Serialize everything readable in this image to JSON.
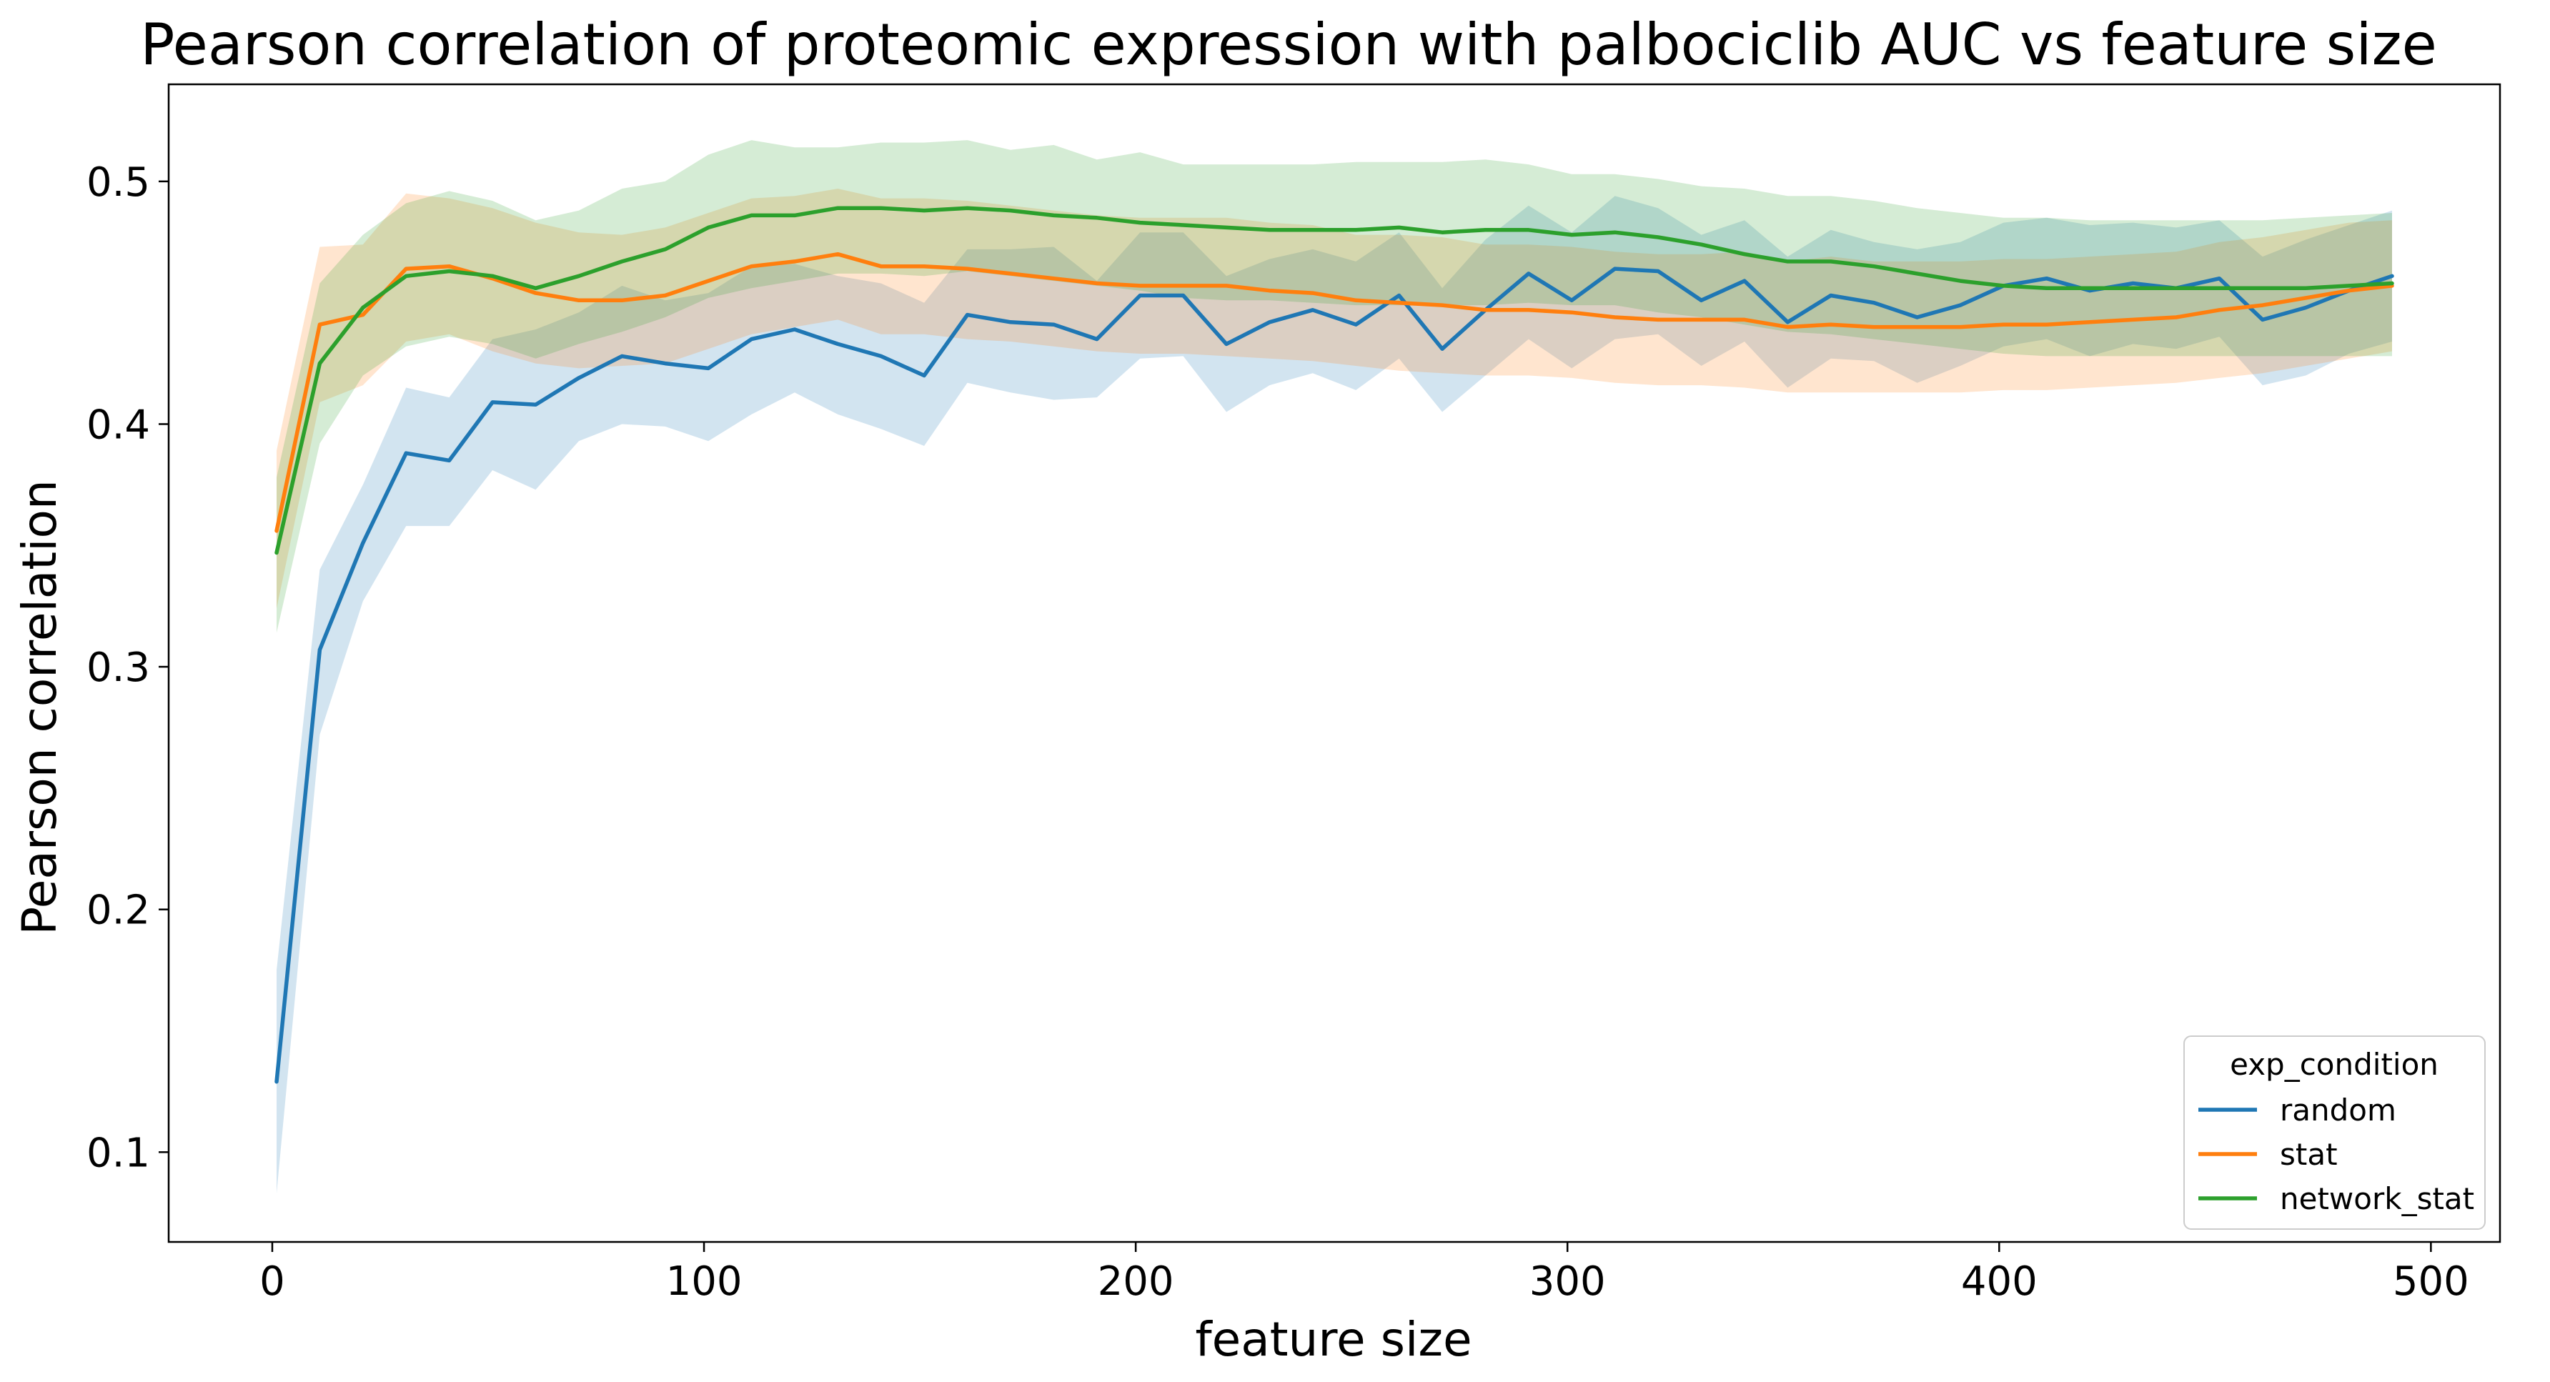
{
  "chart_data": {
    "type": "line",
    "title": "Pearson correlation of proteomic expression with palbociclib AUC vs feature size",
    "xlabel": "feature size",
    "ylabel": "Pearson correlation",
    "xlim": [
      -24,
      516
    ],
    "ylim": [
      0.063,
      0.54
    ],
    "xticks": [
      0,
      100,
      200,
      300,
      400,
      500
    ],
    "xtick_labels": [
      "0",
      "100",
      "200",
      "300",
      "400",
      "500"
    ],
    "yticks": [
      0.1,
      0.2,
      0.3,
      0.4,
      0.5
    ],
    "ytick_labels": [
      "0.1",
      "0.2",
      "0.3",
      "0.4",
      "0.5"
    ],
    "grid": false,
    "legend": {
      "title": "exp_condition",
      "placement": "lower-right"
    },
    "x": [
      1,
      11,
      21,
      31,
      41,
      51,
      61,
      71,
      81,
      91,
      101,
      111,
      121,
      131,
      141,
      151,
      161,
      171,
      181,
      191,
      201,
      211,
      221,
      231,
      241,
      251,
      261,
      271,
      281,
      291,
      301,
      311,
      321,
      331,
      341,
      351,
      361,
      371,
      381,
      391,
      401,
      411,
      421,
      431,
      441,
      451,
      461,
      471,
      481,
      491
    ],
    "series": [
      {
        "name": "random",
        "color": "#1f77b4",
        "values": [
          0.129,
          0.307,
          0.351,
          0.388,
          0.385,
          0.409,
          0.408,
          0.419,
          0.428,
          0.425,
          0.423,
          0.435,
          0.439,
          0.433,
          0.428,
          0.42,
          0.445,
          0.442,
          0.441,
          0.435,
          0.453,
          0.453,
          0.433,
          0.442,
          0.447,
          0.441,
          0.453,
          0.431,
          0.447,
          0.462,
          0.451,
          0.464,
          0.463,
          0.451,
          0.459,
          0.442,
          0.453,
          0.45,
          0.444,
          0.449,
          0.457,
          0.46,
          0.455,
          0.458,
          0.456,
          0.46,
          0.443,
          0.448,
          0.455,
          0.461
        ],
        "lower": [
          0.083,
          0.272,
          0.327,
          0.358,
          0.358,
          0.381,
          0.373,
          0.393,
          0.4,
          0.399,
          0.393,
          0.404,
          0.413,
          0.404,
          0.398,
          0.391,
          0.417,
          0.413,
          0.41,
          0.411,
          0.427,
          0.428,
          0.405,
          0.416,
          0.421,
          0.414,
          0.427,
          0.405,
          0.42,
          0.435,
          0.423,
          0.435,
          0.437,
          0.424,
          0.434,
          0.415,
          0.427,
          0.426,
          0.417,
          0.424,
          0.432,
          0.435,
          0.428,
          0.433,
          0.431,
          0.436,
          0.416,
          0.42,
          0.429,
          0.434
        ],
        "upper": [
          0.175,
          0.34,
          0.375,
          0.415,
          0.411,
          0.435,
          0.439,
          0.446,
          0.457,
          0.451,
          0.454,
          0.465,
          0.466,
          0.461,
          0.458,
          0.45,
          0.472,
          0.472,
          0.473,
          0.459,
          0.479,
          0.479,
          0.461,
          0.468,
          0.472,
          0.467,
          0.479,
          0.456,
          0.476,
          0.49,
          0.479,
          0.494,
          0.489,
          0.478,
          0.484,
          0.469,
          0.48,
          0.475,
          0.472,
          0.475,
          0.483,
          0.485,
          0.482,
          0.483,
          0.481,
          0.484,
          0.469,
          0.476,
          0.482,
          0.488
        ]
      },
      {
        "name": "stat",
        "color": "#ff7f0e",
        "values": [
          0.356,
          0.441,
          0.445,
          0.464,
          0.465,
          0.46,
          0.454,
          0.451,
          0.451,
          0.453,
          0.459,
          0.465,
          0.467,
          0.47,
          0.465,
          0.465,
          0.464,
          0.462,
          0.46,
          0.458,
          0.457,
          0.457,
          0.457,
          0.455,
          0.454,
          0.451,
          0.45,
          0.449,
          0.447,
          0.447,
          0.446,
          0.444,
          0.443,
          0.443,
          0.443,
          0.44,
          0.441,
          0.44,
          0.44,
          0.44,
          0.441,
          0.441,
          0.442,
          0.443,
          0.444,
          0.447,
          0.449,
          0.452,
          0.455,
          0.457
        ],
        "lower": [
          0.324,
          0.409,
          0.416,
          0.434,
          0.437,
          0.43,
          0.425,
          0.423,
          0.424,
          0.425,
          0.431,
          0.437,
          0.44,
          0.443,
          0.437,
          0.437,
          0.435,
          0.434,
          0.432,
          0.43,
          0.429,
          0.429,
          0.428,
          0.427,
          0.426,
          0.424,
          0.422,
          0.421,
          0.42,
          0.42,
          0.419,
          0.417,
          0.416,
          0.416,
          0.415,
          0.413,
          0.413,
          0.413,
          0.413,
          0.413,
          0.414,
          0.414,
          0.415,
          0.416,
          0.417,
          0.419,
          0.421,
          0.424,
          0.427,
          0.43
        ],
        "upper": [
          0.389,
          0.473,
          0.474,
          0.495,
          0.493,
          0.489,
          0.483,
          0.479,
          0.478,
          0.481,
          0.487,
          0.493,
          0.494,
          0.497,
          0.493,
          0.493,
          0.492,
          0.49,
          0.488,
          0.486,
          0.485,
          0.485,
          0.485,
          0.483,
          0.482,
          0.478,
          0.478,
          0.477,
          0.474,
          0.474,
          0.473,
          0.471,
          0.47,
          0.47,
          0.471,
          0.467,
          0.469,
          0.467,
          0.467,
          0.467,
          0.468,
          0.468,
          0.469,
          0.47,
          0.471,
          0.475,
          0.477,
          0.48,
          0.483,
          0.484
        ]
      },
      {
        "name": "network_stat",
        "color": "#2ca02c",
        "values": [
          0.347,
          0.425,
          0.448,
          0.461,
          0.463,
          0.461,
          0.456,
          0.461,
          0.467,
          0.472,
          0.481,
          0.486,
          0.486,
          0.489,
          0.489,
          0.488,
          0.489,
          0.488,
          0.486,
          0.485,
          0.483,
          0.482,
          0.481,
          0.48,
          0.48,
          0.48,
          0.481,
          0.479,
          0.48,
          0.48,
          0.478,
          0.479,
          0.477,
          0.474,
          0.47,
          0.467,
          0.467,
          0.465,
          0.462,
          0.459,
          0.457,
          0.456,
          0.456,
          0.456,
          0.456,
          0.456,
          0.456,
          0.456,
          0.457,
          0.458
        ],
        "lower": [
          0.314,
          0.392,
          0.42,
          0.432,
          0.436,
          0.433,
          0.427,
          0.433,
          0.438,
          0.444,
          0.452,
          0.456,
          0.459,
          0.462,
          0.462,
          0.461,
          0.463,
          0.461,
          0.459,
          0.457,
          0.455,
          0.452,
          0.451,
          0.451,
          0.45,
          0.449,
          0.449,
          0.449,
          0.449,
          0.45,
          0.449,
          0.449,
          0.446,
          0.444,
          0.441,
          0.438,
          0.437,
          0.435,
          0.433,
          0.431,
          0.429,
          0.428,
          0.428,
          0.428,
          0.428,
          0.428,
          0.428,
          0.428,
          0.428,
          0.428
        ],
        "upper": [
          0.378,
          0.458,
          0.478,
          0.491,
          0.496,
          0.492,
          0.484,
          0.488,
          0.497,
          0.5,
          0.511,
          0.517,
          0.514,
          0.514,
          0.516,
          0.516,
          0.517,
          0.513,
          0.515,
          0.509,
          0.512,
          0.507,
          0.507,
          0.507,
          0.507,
          0.508,
          0.508,
          0.508,
          0.509,
          0.507,
          0.503,
          0.503,
          0.501,
          0.498,
          0.497,
          0.494,
          0.494,
          0.492,
          0.489,
          0.487,
          0.485,
          0.485,
          0.484,
          0.484,
          0.484,
          0.484,
          0.484,
          0.485,
          0.486,
          0.487
        ]
      }
    ]
  }
}
